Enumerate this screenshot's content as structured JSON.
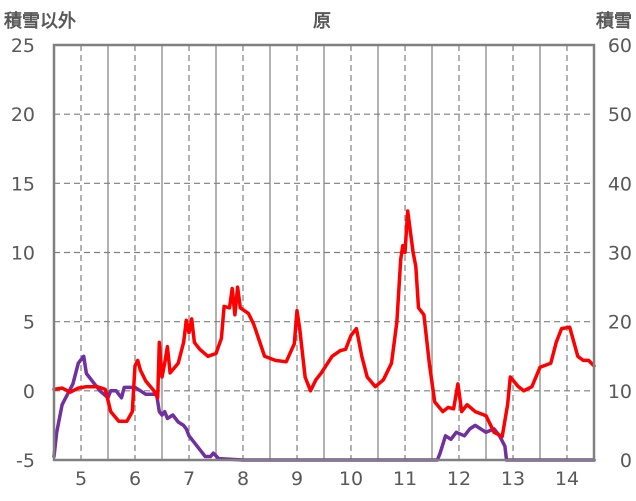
{
  "chart_data": {
    "type": "line",
    "title": "原",
    "left_axis_title": "積雪以外",
    "right_axis_title": "積雪",
    "x_ticks": [
      "5",
      "6",
      "7",
      "8",
      "9",
      "10",
      "11",
      "12",
      "13",
      "14"
    ],
    "xlim": [
      4.5,
      14.5
    ],
    "ylim_left": [
      -5,
      25
    ],
    "ylim_right": [
      0,
      60
    ],
    "y_ticks_left": [
      "-5",
      "0",
      "5",
      "10",
      "15",
      "20",
      "25"
    ],
    "y_ticks_right": [
      "0",
      "10",
      "20",
      "30",
      "40",
      "50",
      "60"
    ],
    "grid": true,
    "legend": "none",
    "series": [
      {
        "axis": "left",
        "color": "#ff0000",
        "values": [
          [
            4.5,
            0.1
          ],
          [
            4.65,
            0.2
          ],
          [
            4.8,
            -0.1
          ],
          [
            4.95,
            0.2
          ],
          [
            5.1,
            0.3
          ],
          [
            5.3,
            0.3
          ],
          [
            5.45,
            0.1
          ],
          [
            5.55,
            -1.5
          ],
          [
            5.7,
            -2.2
          ],
          [
            5.85,
            -2.2
          ],
          [
            5.95,
            -1.5
          ],
          [
            6.0,
            1.8
          ],
          [
            6.05,
            2.2
          ],
          [
            6.1,
            1.5
          ],
          [
            6.2,
            0.7
          ],
          [
            6.35,
            0.0
          ],
          [
            6.42,
            -0.5
          ],
          [
            6.45,
            3.5
          ],
          [
            6.5,
            1.0
          ],
          [
            6.55,
            2.0
          ],
          [
            6.6,
            3.2
          ],
          [
            6.65,
            1.3
          ],
          [
            6.8,
            2.0
          ],
          [
            6.9,
            3.5
          ],
          [
            6.95,
            5.1
          ],
          [
            7.0,
            4.2
          ],
          [
            7.05,
            5.2
          ],
          [
            7.1,
            3.5
          ],
          [
            7.2,
            3.0
          ],
          [
            7.35,
            2.5
          ],
          [
            7.5,
            2.7
          ],
          [
            7.6,
            3.8
          ],
          [
            7.65,
            6.1
          ],
          [
            7.75,
            6.0
          ],
          [
            7.8,
            7.4
          ],
          [
            7.85,
            5.5
          ],
          [
            7.9,
            7.5
          ],
          [
            7.95,
            6.0
          ],
          [
            8.1,
            5.6
          ],
          [
            8.2,
            4.8
          ],
          [
            8.4,
            2.5
          ],
          [
            8.6,
            2.2
          ],
          [
            8.8,
            2.1
          ],
          [
            8.95,
            3.4
          ],
          [
            9.0,
            5.8
          ],
          [
            9.05,
            4.5
          ],
          [
            9.15,
            1.0
          ],
          [
            9.25,
            0.0
          ],
          [
            9.35,
            0.8
          ],
          [
            9.45,
            1.3
          ],
          [
            9.65,
            2.5
          ],
          [
            9.8,
            2.9
          ],
          [
            9.9,
            3.0
          ],
          [
            10.0,
            4.0
          ],
          [
            10.1,
            4.5
          ],
          [
            10.2,
            2.5
          ],
          [
            10.3,
            1.0
          ],
          [
            10.45,
            0.3
          ],
          [
            10.6,
            0.8
          ],
          [
            10.75,
            2.0
          ],
          [
            10.85,
            5.0
          ],
          [
            10.92,
            9.5
          ],
          [
            10.96,
            10.5
          ],
          [
            11.0,
            10.0
          ],
          [
            11.05,
            13.0
          ],
          [
            11.1,
            11.5
          ],
          [
            11.15,
            10.0
          ],
          [
            11.2,
            9.0
          ],
          [
            11.25,
            6.0
          ],
          [
            11.35,
            5.5
          ],
          [
            11.45,
            2.0
          ],
          [
            11.55,
            -0.8
          ],
          [
            11.7,
            -1.5
          ],
          [
            11.8,
            -1.2
          ],
          [
            11.9,
            -1.3
          ],
          [
            11.98,
            0.5
          ],
          [
            12.05,
            -1.5
          ],
          [
            12.15,
            -1.0
          ],
          [
            12.3,
            -1.5
          ],
          [
            12.5,
            -1.8
          ],
          [
            12.65,
            -3.0
          ],
          [
            12.8,
            -3.3
          ],
          [
            12.9,
            -1.0
          ],
          [
            12.95,
            1.0
          ],
          [
            13.1,
            0.3
          ],
          [
            13.2,
            0.0
          ],
          [
            13.35,
            0.3
          ],
          [
            13.5,
            1.7
          ],
          [
            13.7,
            2.0
          ],
          [
            13.8,
            3.5
          ],
          [
            13.9,
            4.5
          ],
          [
            14.05,
            4.6
          ],
          [
            14.2,
            2.5
          ],
          [
            14.3,
            2.2
          ],
          [
            14.4,
            2.2
          ],
          [
            14.5,
            1.8
          ]
        ]
      },
      {
        "axis": "right",
        "color": "#7030a0",
        "values": [
          [
            4.5,
            0.5
          ],
          [
            4.55,
            4.0
          ],
          [
            4.65,
            8.0
          ],
          [
            4.75,
            9.5
          ],
          [
            4.85,
            11.0
          ],
          [
            4.95,
            14.0
          ],
          [
            5.05,
            15.0
          ],
          [
            5.1,
            12.5
          ],
          [
            5.25,
            11.0
          ],
          [
            5.35,
            10.0
          ],
          [
            5.5,
            9.0
          ],
          [
            5.55,
            10.0
          ],
          [
            5.65,
            10.0
          ],
          [
            5.75,
            9.0
          ],
          [
            5.8,
            10.5
          ],
          [
            6.0,
            10.5
          ],
          [
            6.1,
            10.0
          ],
          [
            6.2,
            9.5
          ],
          [
            6.4,
            9.5
          ],
          [
            6.45,
            7.0
          ],
          [
            6.5,
            6.5
          ],
          [
            6.55,
            7.0
          ],
          [
            6.6,
            6.0
          ],
          [
            6.7,
            6.5
          ],
          [
            6.8,
            5.5
          ],
          [
            6.9,
            5.0
          ],
          [
            6.95,
            4.5
          ],
          [
            7.0,
            3.5
          ],
          [
            7.1,
            2.5
          ],
          [
            7.2,
            1.5
          ],
          [
            7.3,
            0.5
          ],
          [
            7.4,
            0.5
          ],
          [
            7.45,
            1.0
          ],
          [
            7.55,
            0.2
          ],
          [
            8.0,
            0.0
          ],
          [
            9.0,
            0.0
          ],
          [
            10.0,
            0.0
          ],
          [
            11.0,
            0.0
          ],
          [
            11.6,
            0.0
          ],
          [
            11.65,
            1.0
          ],
          [
            11.75,
            3.5
          ],
          [
            11.85,
            3.0
          ],
          [
            11.95,
            4.0
          ],
          [
            12.1,
            3.5
          ],
          [
            12.2,
            4.5
          ],
          [
            12.3,
            5.0
          ],
          [
            12.5,
            4.0
          ],
          [
            12.65,
            4.5
          ],
          [
            12.75,
            3.5
          ],
          [
            12.85,
            2.0
          ],
          [
            12.88,
            0.0
          ],
          [
            14.5,
            0.0
          ]
        ]
      }
    ]
  }
}
